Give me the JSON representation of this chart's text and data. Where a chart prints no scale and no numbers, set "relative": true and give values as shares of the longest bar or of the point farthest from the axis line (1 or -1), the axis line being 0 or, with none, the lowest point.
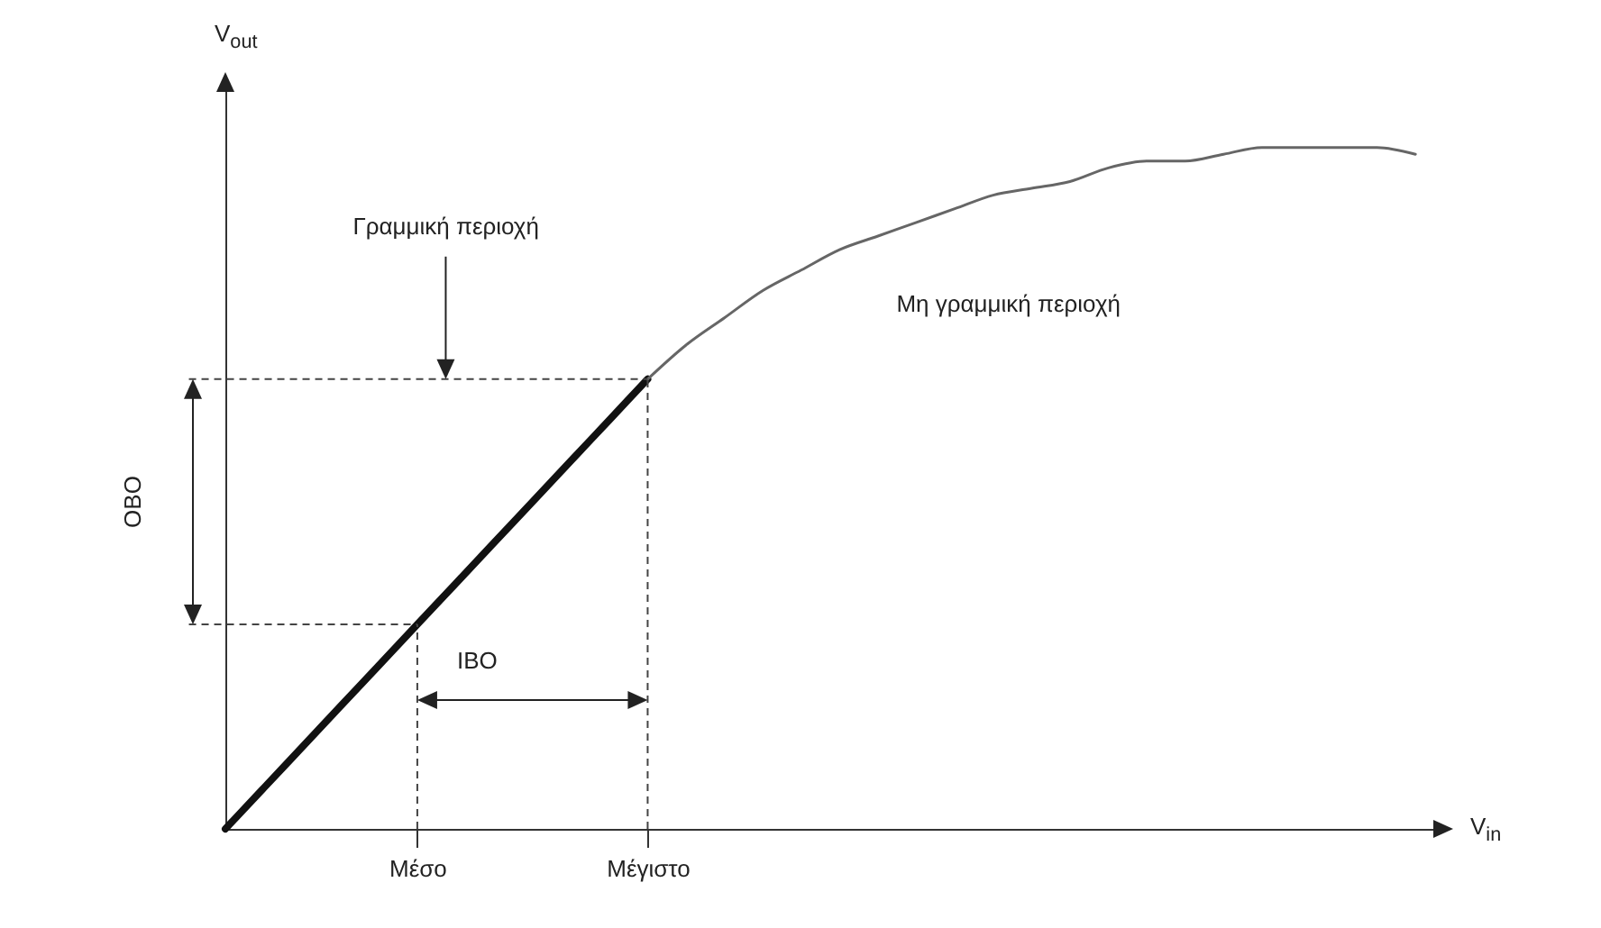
{
  "chart_data": {
    "type": "line",
    "relative": true,
    "xlabel": "V$_{in}$",
    "ylabel": "V$_{out}$",
    "categories": [
      null,
      null,
      null,
      null,
      null,
      "Μέσο",
      null,
      null,
      null,
      null,
      null,
      "Μέγιστο",
      null,
      null,
      null,
      null,
      null,
      null,
      null,
      null,
      null,
      null,
      null,
      null,
      null,
      null,
      null,
      null,
      null,
      null,
      null,
      null
    ],
    "series": [
      {
        "color": "#111111",
        "values": [
          0,
          0.06,
          0.12,
          0.18,
          0.24,
          0.3,
          0.36,
          0.42,
          0.48,
          0.54,
          0.6,
          0.66,
          null,
          null,
          null,
          null,
          null,
          null,
          null,
          null,
          null,
          null,
          null,
          null,
          null,
          null,
          null,
          null,
          null,
          null,
          null,
          null
        ]
      },
      {
        "color": "#666666",
        "values": [
          null,
          null,
          null,
          null,
          null,
          null,
          null,
          null,
          null,
          null,
          null,
          0.66,
          0.71,
          0.75,
          0.79,
          0.82,
          0.85,
          0.87,
          0.89,
          0.91,
          0.93,
          0.94,
          0.95,
          0.97,
          0.98,
          0.98,
          0.99,
          1,
          1,
          1,
          1,
          0.99
        ]
      }
    ],
    "ref_lines": [
      {
        "axis": "x",
        "value": "Μέσο",
        "line_style": "dashed"
      },
      {
        "axis": "x",
        "value": "Μέγιστο",
        "line_style": "dashed"
      },
      {
        "axis": "y",
        "value": 0.3,
        "line_style": "dashed"
      },
      {
        "axis": "y",
        "value": 0.66,
        "line_style": "dashed"
      }
    ],
    "annotations": [
      "Γραμμική περιοχή",
      "Μη γραμμική περιοχή",
      "OBO",
      "IBO"
    ]
  }
}
